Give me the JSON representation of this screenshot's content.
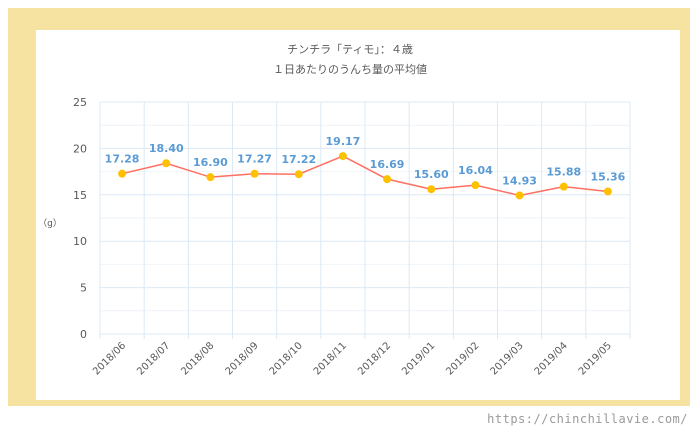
{
  "chart_data": {
    "type": "line",
    "title": "チンチラ「ティモ」：４歳",
    "subtitle": "１日あたりのうんち量の平均値",
    "ylabel": "（g）",
    "xlabel": "",
    "categories": [
      "2018/06",
      "2018/07",
      "2018/08",
      "2018/09",
      "2018/10",
      "2018/11",
      "2018/12",
      "2019/01",
      "2019/02",
      "2019/03",
      "2019/04",
      "2019/05"
    ],
    "values": [
      17.28,
      18.4,
      16.9,
      17.27,
      17.22,
      19.17,
      16.69,
      15.6,
      16.04,
      14.93,
      15.88,
      15.36
    ],
    "data_labels": [
      "17.28",
      "18.40",
      "16.90",
      "17.27",
      "17.22",
      "19.17",
      "16.69",
      "15.60",
      "16.04",
      "14.93",
      "15.88",
      "15.36"
    ],
    "ylim": [
      0,
      25
    ],
    "yticks": [
      "0",
      "5",
      "10",
      "15",
      "20",
      "25"
    ],
    "grid": true,
    "legend": "none",
    "colors": {
      "line": "#ff6f61",
      "marker": "#ffc000",
      "label": "#5b9bd5",
      "grid": "#dbe9f5",
      "frame": "#f6e3a1"
    }
  },
  "watermark": "https://chinchillavie.com/"
}
